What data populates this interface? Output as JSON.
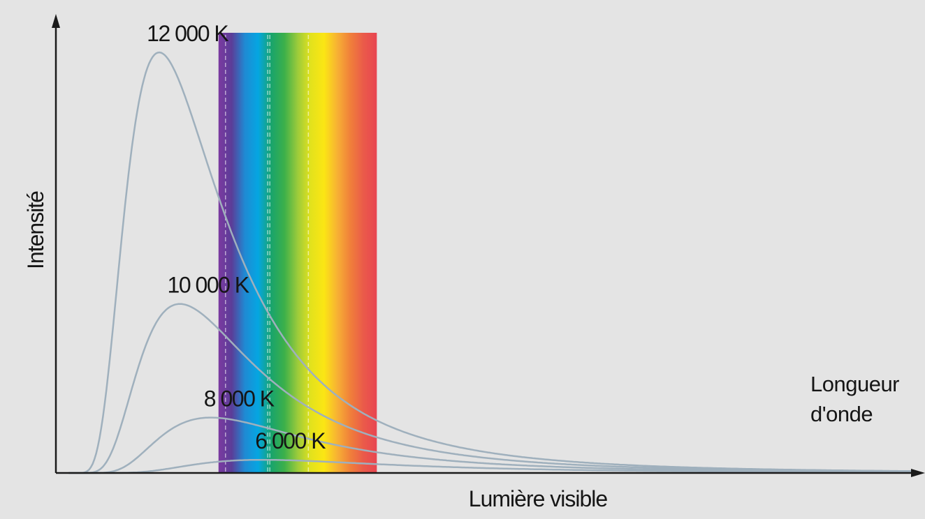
{
  "chart_data": {
    "type": "line",
    "title": "",
    "xlabel": "Longueur d'onde",
    "ylabel": "Intensité",
    "xlabel_lines": [
      "Longueur",
      "d'onde"
    ],
    "band_label": "Lumière visible",
    "x_units": "nm",
    "x_range": [
      0,
      2000
    ],
    "y_range": [
      0,
      1.05
    ],
    "grid": false,
    "legend": "none",
    "visible_band": [
      380,
      750
    ],
    "band_dividers": [
      380,
      495,
      500,
      590
    ],
    "series": [
      {
        "name": "12 000 K",
        "temperature": 12000,
        "color": "#9fb0bd"
      },
      {
        "name": "10 000 K",
        "temperature": 10000,
        "color": "#9fb0bd"
      },
      {
        "name": "8 000 K",
        "temperature": 8000,
        "color": "#9fb0bd"
      },
      {
        "name": "6 000 K",
        "temperature": 6000,
        "color": "#9fb0bd"
      }
    ],
    "spectrum_colors": [
      "#7b3aa0",
      "#5b3d98",
      "#1f8ad3",
      "#05a6e2",
      "#19a46c",
      "#3cb04a",
      "#9ccb3b",
      "#e3e21c",
      "#fbe614",
      "#f7b134",
      "#f07f3a",
      "#ea5a4a",
      "#e84551"
    ]
  },
  "background_color": "#e4e4e4",
  "axis_color": "#1a1a1a"
}
